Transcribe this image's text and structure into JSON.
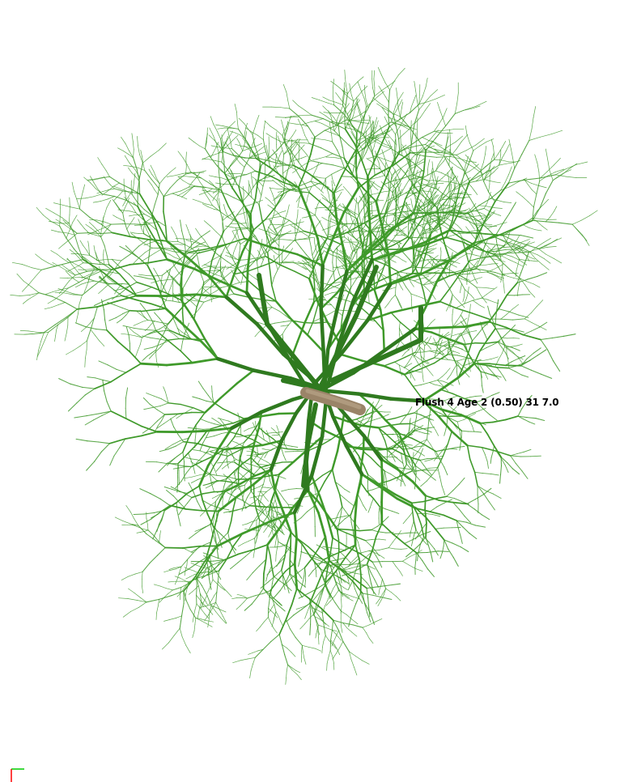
{
  "viewer": {
    "status_label": "Flush 4 Age 2 (0.50) 31 7.0",
    "background_color": "#ffffff",
    "branch_color": "#3f9a2a",
    "branch_dark_color": "#2f7a1f",
    "trunk_color": "#9a8468",
    "axis_x_color": "#ff0000",
    "axis_y_color": "#00cc00"
  },
  "scene": {
    "subject": "tree-branching-structure",
    "axis_icon": "xy-axis-icon"
  }
}
